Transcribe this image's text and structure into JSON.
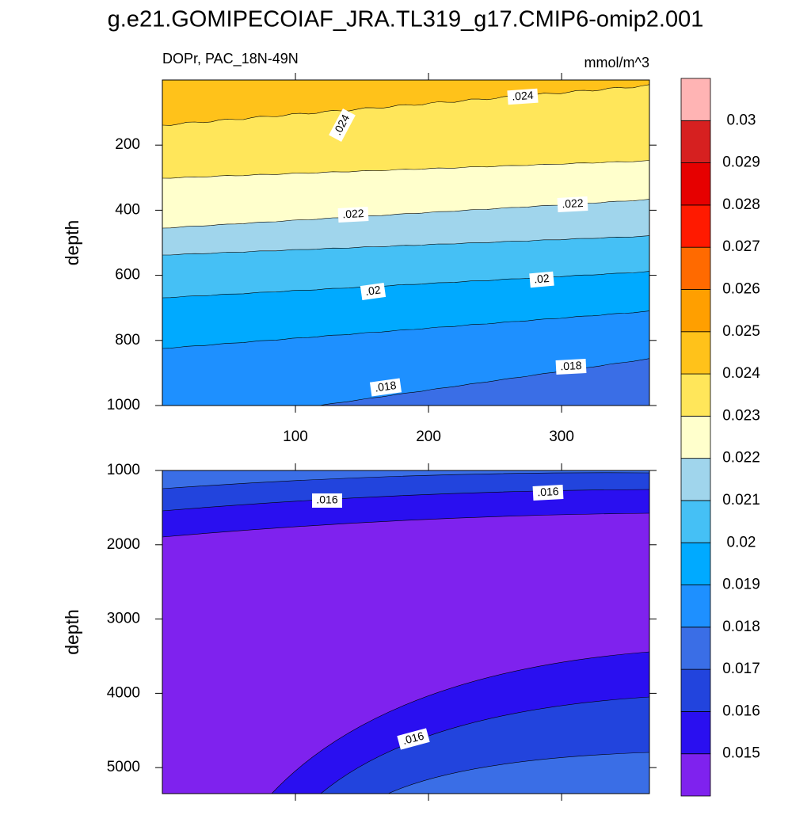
{
  "chart_data": {
    "type": "contour",
    "title": "g.e21.GOMIPECOIAF_JRA.TL319_g17.CMIP6-omip2.001",
    "subtitle": "DOPr, PAC_18N-49N",
    "units": "mmol/m^3",
    "levels": [
      0.015,
      0.016,
      0.017,
      0.018,
      0.019,
      0.02,
      0.021,
      0.022,
      0.023,
      0.024,
      0.025,
      0.026,
      0.027,
      0.028,
      0.029,
      0.03
    ],
    "colors": [
      "#7f22ee",
      "#2a0ff0",
      "#2244dd",
      "#3a6ee6",
      "#1e90ff",
      "#00aaff",
      "#45c0f5",
      "#a0d5ec",
      "#ffffcc",
      "#ffe65a",
      "#ffc21a",
      "#ff9f00",
      "#ff6a00",
      "#ff1a00",
      "#e60000",
      "#d62020",
      "#ffb4b4"
    ],
    "panels": [
      {
        "ylabel": "depth",
        "xlim": [
          0,
          366
        ],
        "xticks": [
          100,
          200,
          300
        ],
        "ylim": [
          0,
          1000
        ],
        "yticks": [
          200,
          400,
          600,
          800,
          1000
        ],
        "contour_labels": [
          {
            "value": 0.024,
            "label": ".024"
          },
          {
            "value": 0.024,
            "label": ".024"
          },
          {
            "value": 0.022,
            "label": ".022"
          },
          {
            "value": 0.022,
            "label": ".022"
          },
          {
            "value": 0.02,
            "label": ".02"
          },
          {
            "value": 0.02,
            "label": ".02"
          },
          {
            "value": 0.018,
            "label": ".018"
          },
          {
            "value": 0.018,
            "label": ".018"
          }
        ]
      },
      {
        "ylabel": "depth",
        "xlim": [
          0,
          366
        ],
        "ylim": [
          1000,
          5350
        ],
        "yticks": [
          1000,
          2000,
          3000,
          4000,
          5000
        ],
        "contour_labels": [
          {
            "value": 0.016,
            "label": ".016"
          },
          {
            "value": 0.016,
            "label": ".016"
          },
          {
            "value": 0.016,
            "label": ".016"
          }
        ]
      }
    ]
  }
}
